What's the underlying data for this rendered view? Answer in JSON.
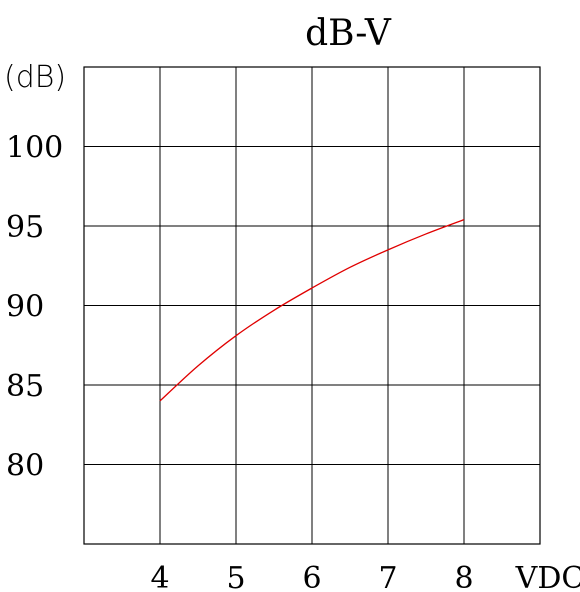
{
  "chart_data": {
    "type": "line",
    "title": "dB-V",
    "ylabel": "(dB)",
    "xlabel": "VDC",
    "x_ticks": [
      4,
      5,
      6,
      7,
      8
    ],
    "y_ticks": [
      80,
      85,
      90,
      95,
      100
    ],
    "xlim": [
      3,
      9
    ],
    "ylim": [
      75,
      105
    ],
    "grid": true,
    "series": [
      {
        "color": "#e00000",
        "x": [
          4,
          4.5,
          5,
          5.5,
          6,
          6.5,
          7,
          7.5,
          8
        ],
        "y": [
          84.0,
          86.2,
          88.1,
          89.7,
          91.1,
          92.4,
          93.5,
          94.5,
          95.4
        ]
      }
    ]
  },
  "colors": {
    "axis": "#000000",
    "grid": "#000000",
    "line": "#e00000"
  }
}
